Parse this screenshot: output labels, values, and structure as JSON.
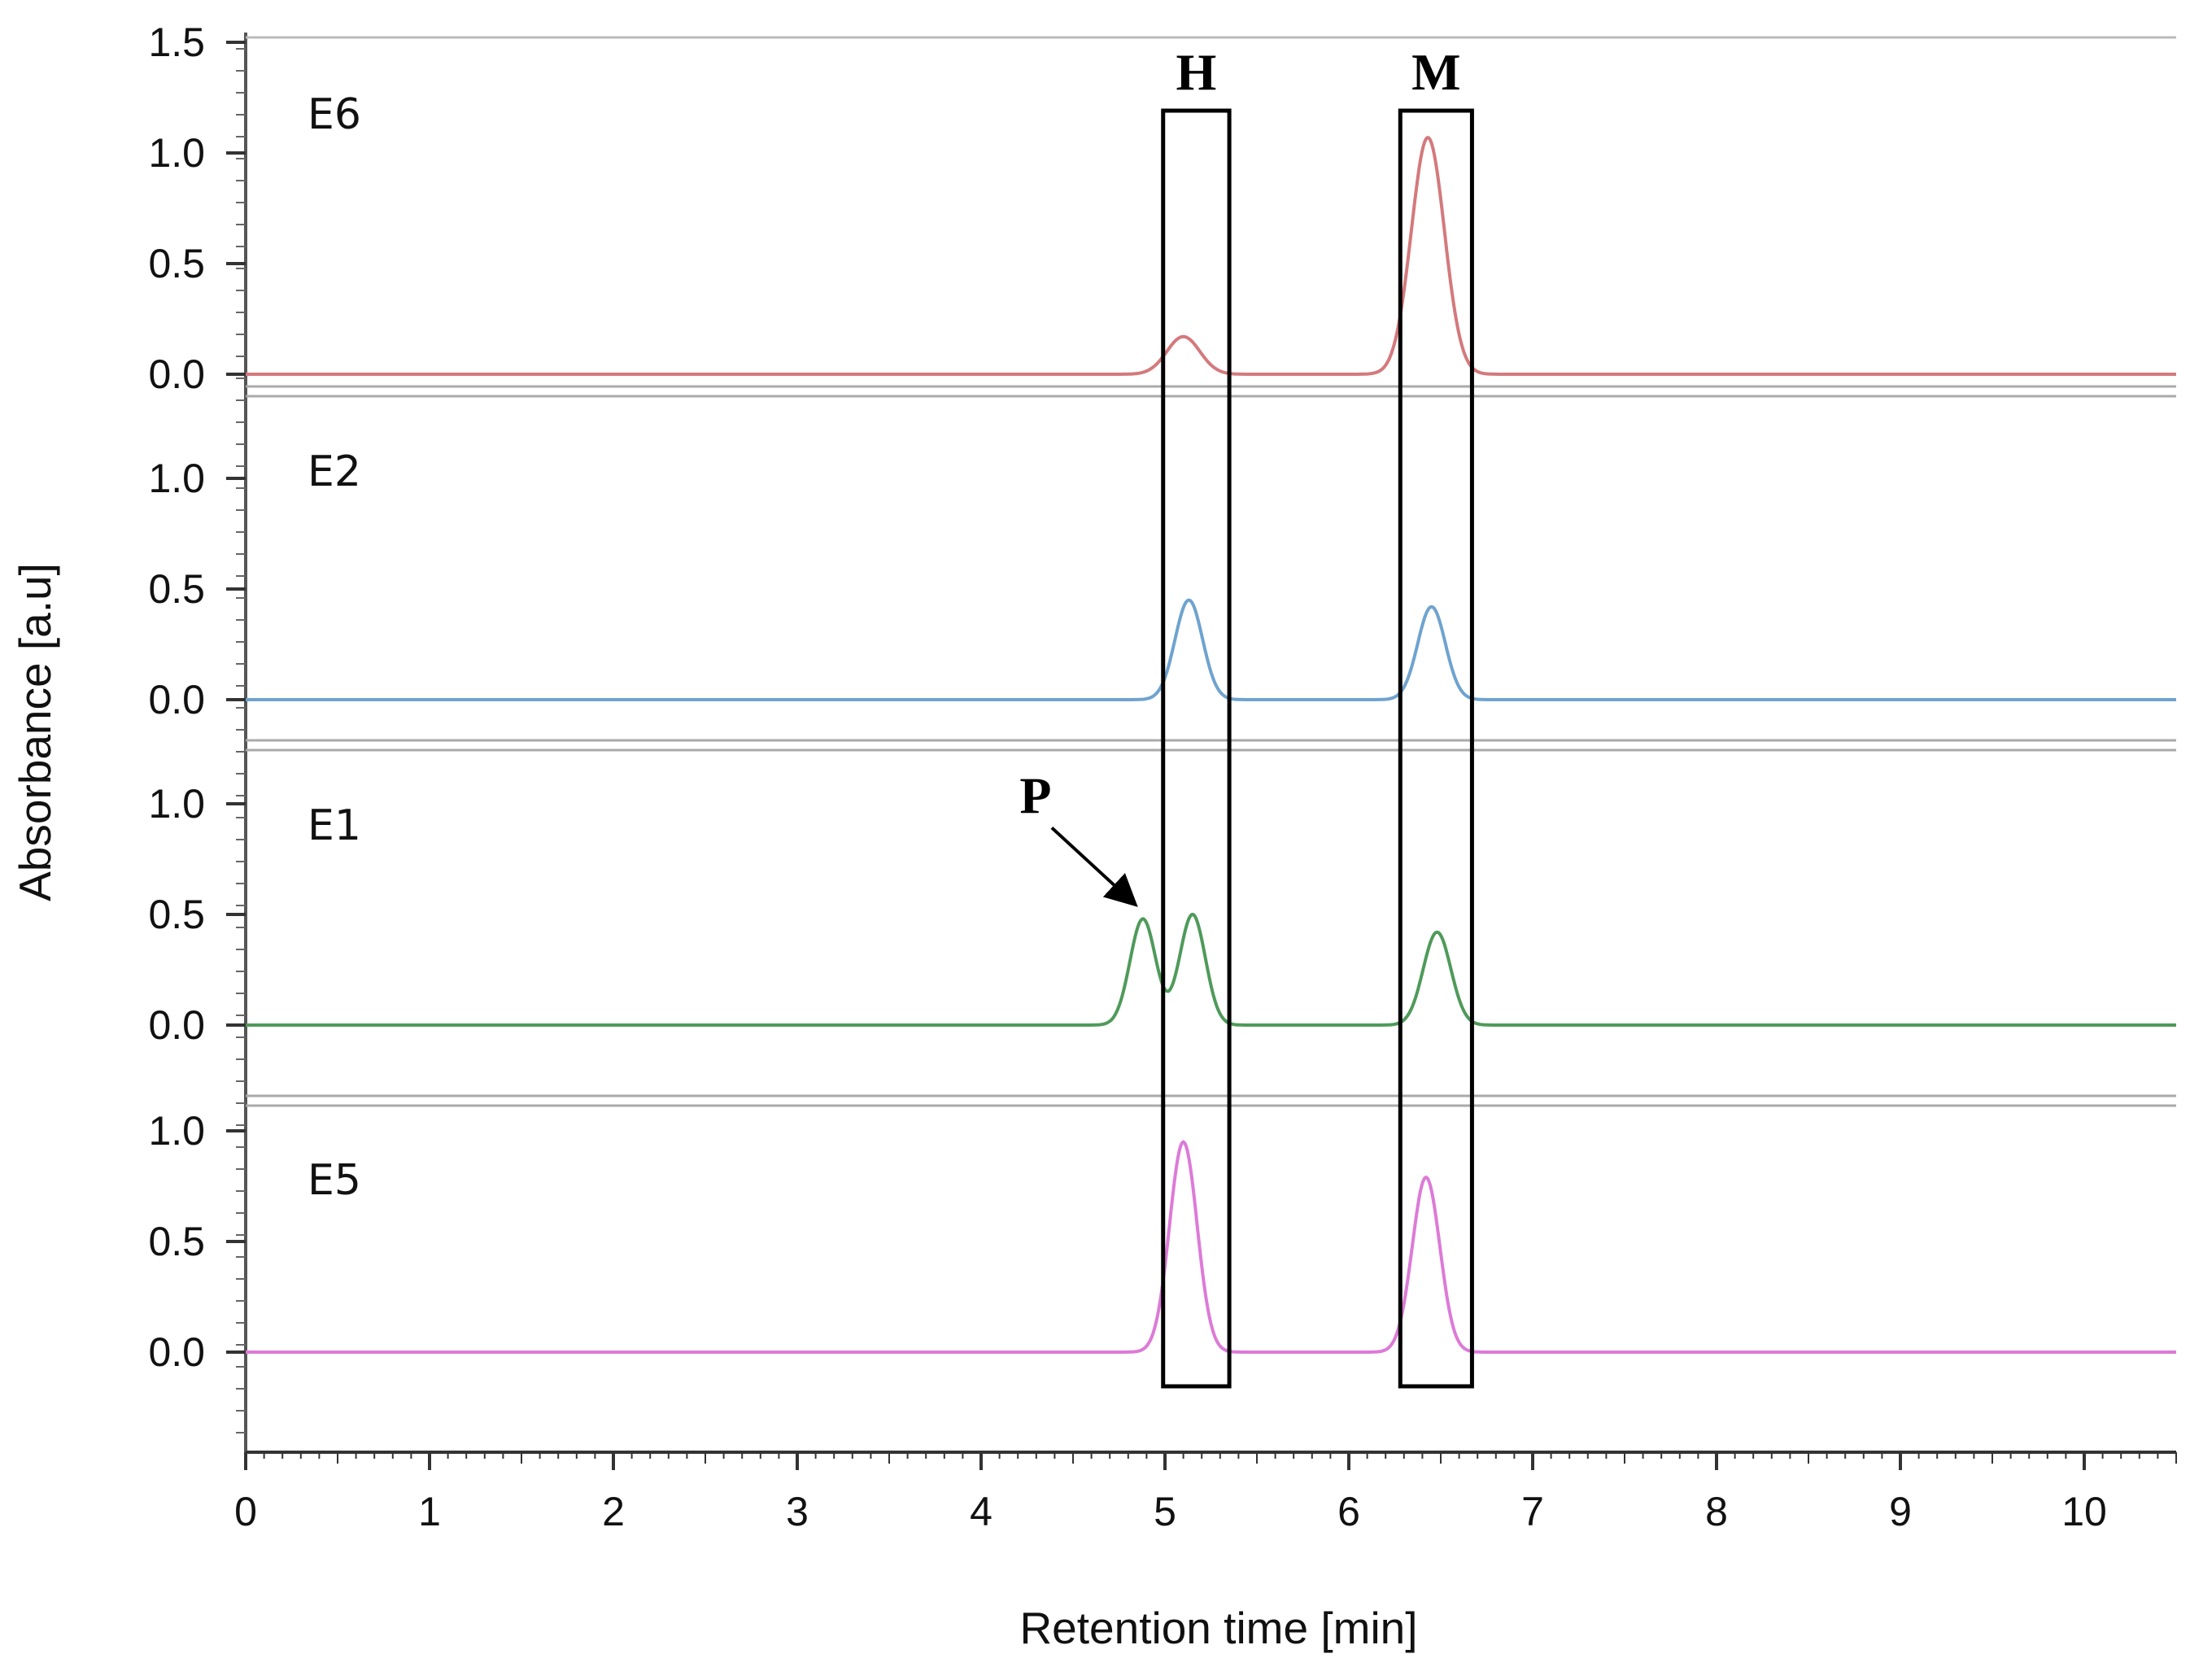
{
  "chart_data": {
    "type": "line",
    "xlabel": "Retention time [min]",
    "ylabel": "Absorbance [a.u]",
    "xlim": [
      0,
      10.5
    ],
    "xticks": [
      "0",
      "1",
      "2",
      "3",
      "4",
      "5",
      "6",
      "7",
      "8",
      "9",
      "10"
    ],
    "grid": false,
    "panels": [
      {
        "name": "E6",
        "color": "#d4797c",
        "yticks": [
          "1.5",
          "1.0",
          "0.5",
          "0.0"
        ],
        "ylim": [
          0,
          1.5
        ],
        "peaks": [
          {
            "rt": 5.1,
            "height": 0.17,
            "width": 0.09
          },
          {
            "rt": 6.43,
            "height": 1.07,
            "width": 0.09
          }
        ]
      },
      {
        "name": "E2",
        "color": "#6fa3cf",
        "yticks": [
          "1.0",
          "0.5",
          "0.0"
        ],
        "ylim": [
          0,
          1.0
        ],
        "peaks": [
          {
            "rt": 5.13,
            "height": 0.45,
            "width": 0.075
          },
          {
            "rt": 6.45,
            "height": 0.42,
            "width": 0.075
          }
        ]
      },
      {
        "name": "E1",
        "color": "#4f9a5a",
        "yticks": [
          "1.0",
          "0.5",
          "0.0"
        ],
        "ylim": [
          0,
          1.0
        ],
        "peaks": [
          {
            "rt": 4.88,
            "height": 0.48,
            "width": 0.07
          },
          {
            "rt": 5.15,
            "height": 0.5,
            "width": 0.07
          },
          {
            "rt": 6.48,
            "height": 0.42,
            "width": 0.075
          }
        ]
      },
      {
        "name": "E5",
        "color": "#dd7ad7",
        "yticks": [
          "1.0",
          "0.5",
          "0.0"
        ],
        "ylim": [
          0,
          1.0
        ],
        "peaks": [
          {
            "rt": 5.1,
            "height": 0.95,
            "width": 0.075
          },
          {
            "rt": 6.42,
            "height": 0.79,
            "width": 0.075
          }
        ]
      }
    ],
    "annotations": [
      {
        "text": "H",
        "type": "box",
        "x_from": 4.99,
        "x_to": 5.35
      },
      {
        "text": "M",
        "type": "box",
        "x_from": 6.28,
        "x_to": 6.67
      },
      {
        "text": "P",
        "type": "arrow",
        "points_to_rt": 4.88,
        "panel": "E1"
      }
    ]
  }
}
